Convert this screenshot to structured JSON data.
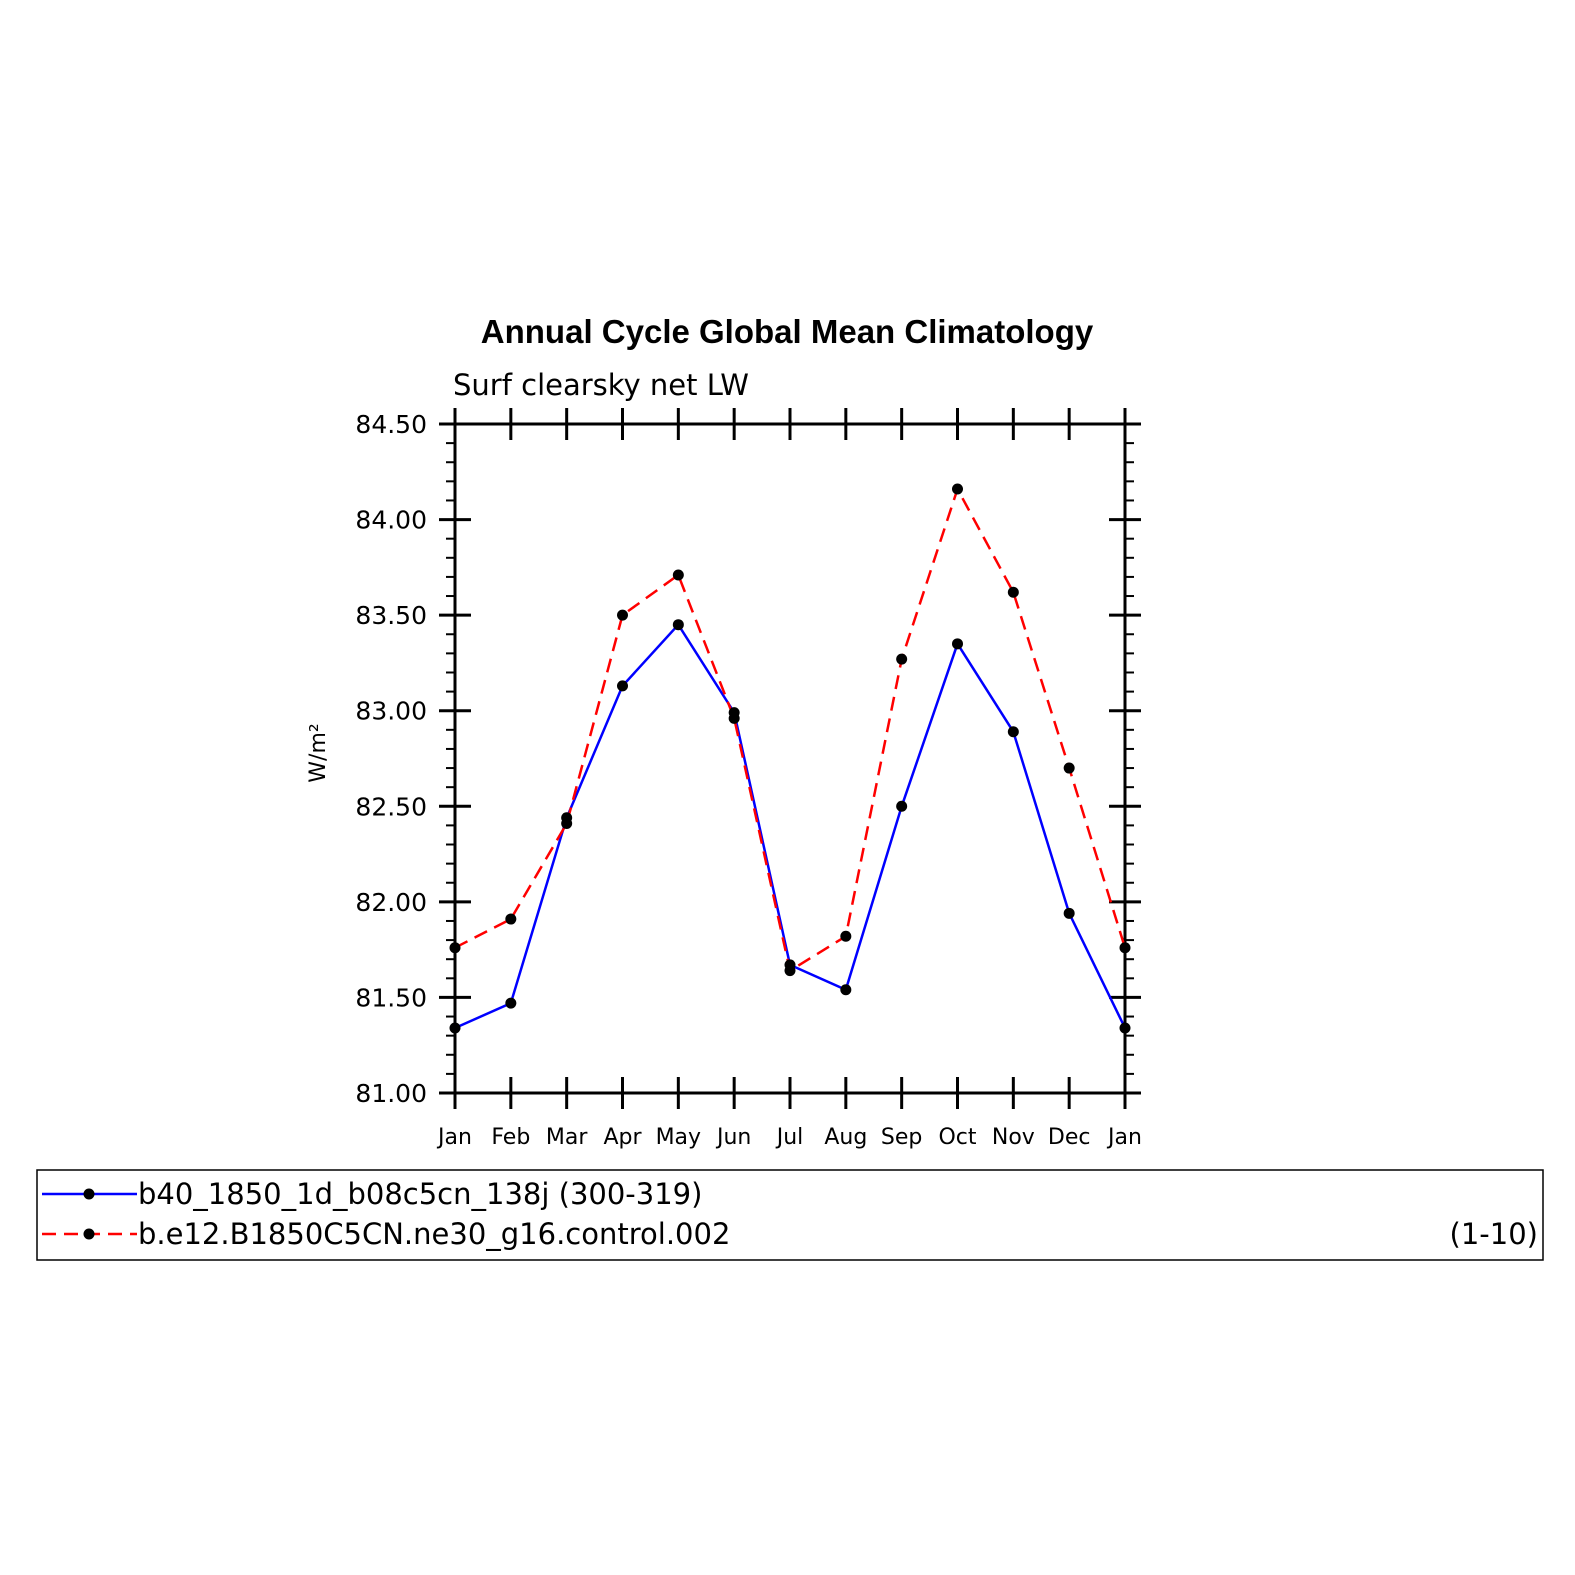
{
  "chart_data": {
    "type": "line",
    "title": "Annual Cycle Global Mean Climatology",
    "subtitle": "Surf clearsky net LW",
    "ylabel": "W/m²",
    "ylim": [
      81.0,
      84.5
    ],
    "yticks": [
      "81.00",
      "81.50",
      "82.00",
      "82.50",
      "83.00",
      "83.50",
      "84.00",
      "84.50"
    ],
    "ytick_values": [
      81.0,
      81.5,
      82.0,
      82.5,
      83.0,
      83.5,
      84.0,
      84.5
    ],
    "categories": [
      "Jan",
      "Feb",
      "Mar",
      "Apr",
      "May",
      "Jun",
      "Jul",
      "Aug",
      "Sep",
      "Oct",
      "Nov",
      "Dec",
      "Jan"
    ],
    "series": [
      {
        "name": "b40_1850_1d_b08c5cn_138j (300-319)",
        "color": "#0000ff",
        "dash": "solid",
        "values": [
          81.34,
          81.47,
          82.44,
          83.13,
          83.45,
          82.99,
          81.67,
          81.54,
          82.5,
          83.35,
          82.89,
          81.94,
          81.34
        ]
      },
      {
        "name": "b.e12.B1850C5CN.ne30_g16.control.002",
        "period": "(1-10)",
        "color": "#ff0000",
        "dash": "dashed",
        "values": [
          81.76,
          81.91,
          82.41,
          83.5,
          83.71,
          82.96,
          81.64,
          81.82,
          83.27,
          84.16,
          83.62,
          82.7,
          81.76
        ]
      }
    ],
    "grid": false,
    "legend_position": "bottom"
  }
}
